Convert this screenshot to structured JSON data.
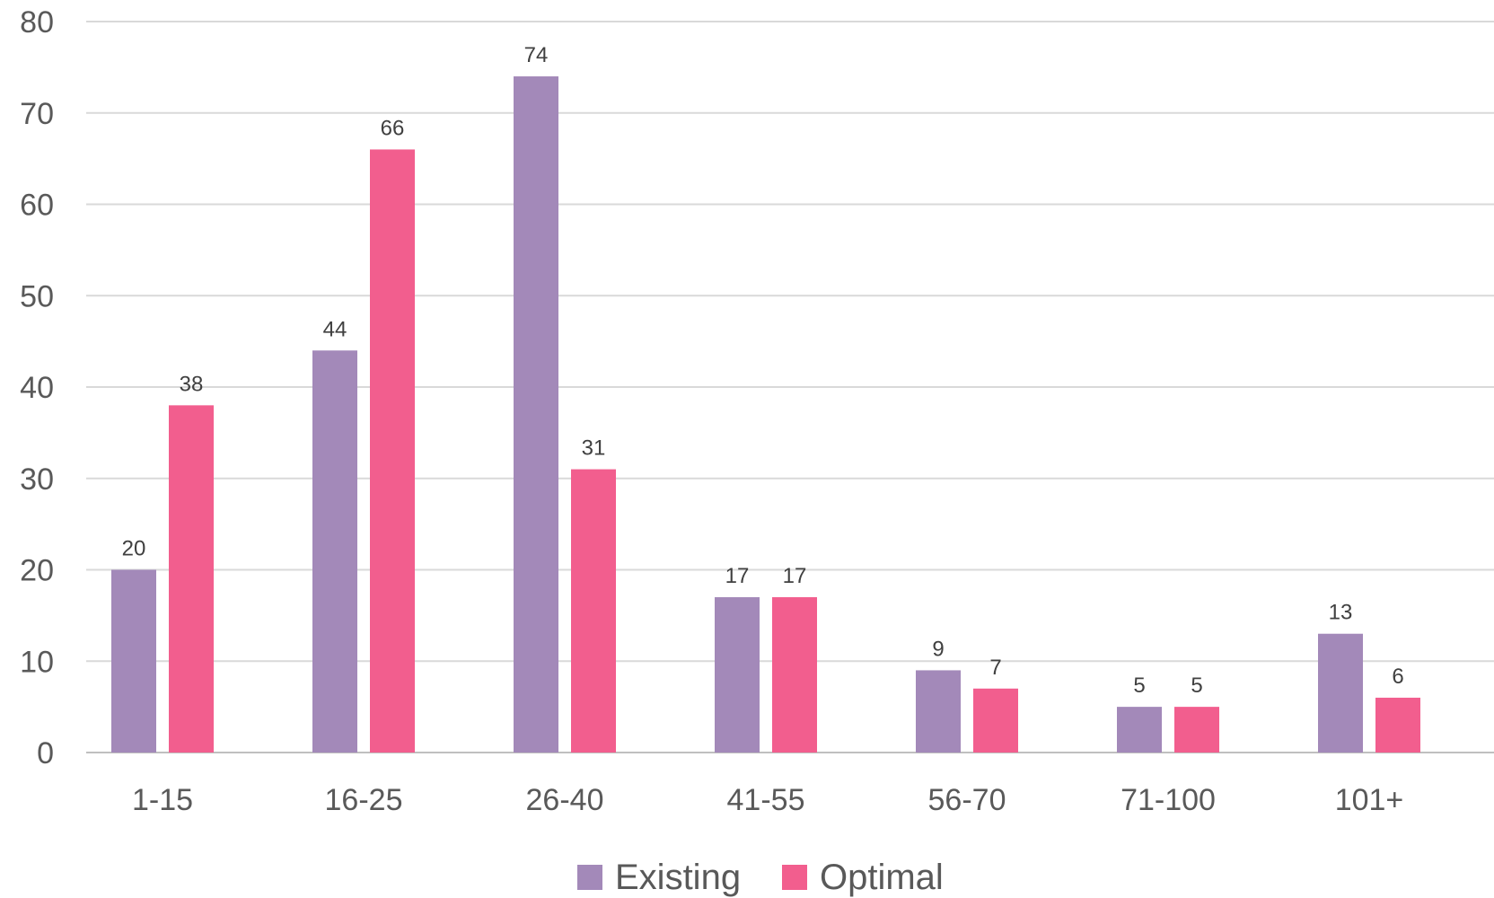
{
  "chart_data": {
    "type": "bar",
    "title": "",
    "xlabel": "",
    "ylabel": "",
    "categories": [
      "1-15",
      "16-25",
      "26-40",
      "41-55",
      "56-70",
      "71-100",
      "101+"
    ],
    "series": [
      {
        "name": "Existing",
        "color": "#a389b9",
        "values": [
          20,
          44,
          74,
          17,
          9,
          5,
          13
        ]
      },
      {
        "name": "Optimal",
        "color": "#f25e8e",
        "values": [
          38,
          66,
          31,
          17,
          7,
          5,
          6
        ]
      }
    ],
    "ylim": [
      0,
      80
    ],
    "yticks": [
      0,
      10,
      20,
      30,
      40,
      50,
      60,
      70,
      80
    ],
    "grid": true,
    "legend": "bottom-center",
    "data_labels": true
  }
}
